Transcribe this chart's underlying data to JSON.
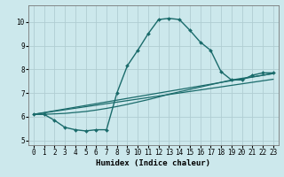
{
  "xlabel": "Humidex (Indice chaleur)",
  "xlim": [
    -0.5,
    23.5
  ],
  "ylim": [
    4.8,
    10.7
  ],
  "yticks": [
    5,
    6,
    7,
    8,
    9,
    10
  ],
  "xticks": [
    0,
    1,
    2,
    3,
    4,
    5,
    6,
    7,
    8,
    9,
    10,
    11,
    12,
    13,
    14,
    15,
    16,
    17,
    18,
    19,
    20,
    21,
    22,
    23
  ],
  "bg_color": "#cce8ec",
  "grid_color": "#b0cdd2",
  "line_color": "#1a6b6b",
  "main_line": {
    "x": [
      0,
      1,
      2,
      3,
      4,
      5,
      6,
      7,
      8,
      9,
      10,
      11,
      12,
      13,
      14,
      15,
      16,
      17,
      18,
      19,
      20,
      21,
      22,
      23
    ],
    "y": [
      6.1,
      6.1,
      5.85,
      5.55,
      5.45,
      5.4,
      5.45,
      5.45,
      7.0,
      8.15,
      8.8,
      9.5,
      10.1,
      10.15,
      10.1,
      9.65,
      9.15,
      8.8,
      7.9,
      7.55,
      7.55,
      7.75,
      7.85,
      7.85
    ]
  },
  "trend_line1": {
    "x": [
      0,
      1,
      2,
      3,
      4,
      5,
      6,
      7,
      8,
      9,
      10,
      11,
      12,
      13,
      14,
      15,
      16,
      17,
      18,
      19,
      20,
      21,
      22,
      23
    ],
    "y": [
      6.1,
      6.1,
      6.12,
      6.14,
      6.18,
      6.22,
      6.28,
      6.35,
      6.43,
      6.52,
      6.62,
      6.72,
      6.83,
      6.95,
      7.05,
      7.15,
      7.25,
      7.35,
      7.45,
      7.55,
      7.62,
      7.68,
      7.75,
      7.82
    ]
  },
  "trend_line2": {
    "x": [
      0,
      23
    ],
    "y": [
      6.1,
      7.82
    ]
  },
  "trend_line3": {
    "x": [
      0,
      23
    ],
    "y": [
      6.1,
      7.58
    ]
  },
  "label_fontsize": 6.5,
  "tick_fontsize": 5.5
}
